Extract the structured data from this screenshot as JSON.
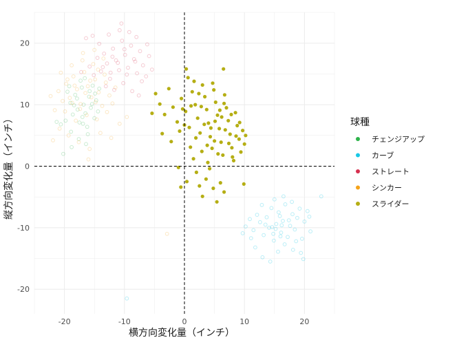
{
  "chart_data": {
    "type": "scatter",
    "xlabel": "横方向変化量（インチ）",
    "ylabel": "縦方向変化量（インチ）",
    "xlim": [
      -25,
      25
    ],
    "ylim": [
      -24,
      25
    ],
    "x_ticks": [
      -20,
      -10,
      0,
      10,
      20
    ],
    "y_ticks": [
      -20,
      -10,
      0,
      10,
      20
    ],
    "x_tick_labels": [
      "-20",
      "-10",
      "0",
      "10",
      "20"
    ],
    "y_tick_labels": [
      "-20",
      "-10",
      "0",
      "10",
      "20"
    ],
    "grid": true,
    "reference_lines": {
      "x": 0,
      "y": 0,
      "style": "dashed"
    },
    "legend_title": "球種",
    "legend_position": "right",
    "series": [
      {
        "name": "チェンジアップ",
        "color": "#2db34a",
        "opacity": 0.25,
        "filled": false,
        "points": [
          [
            -19.5,
            12.1
          ],
          [
            -19.0,
            10.3
          ],
          [
            -18.6,
            8.4
          ],
          [
            -18.2,
            11.6
          ],
          [
            -17.8,
            9.2
          ],
          [
            -17.5,
            7.1
          ],
          [
            -17.1,
            12.8
          ],
          [
            -16.8,
            10.0
          ],
          [
            -16.5,
            8.6
          ],
          [
            -16.2,
            6.4
          ],
          [
            -15.9,
            11.3
          ],
          [
            -15.6,
            9.5
          ],
          [
            -15.3,
            13.1
          ],
          [
            -15.0,
            7.8
          ],
          [
            -14.7,
            10.7
          ],
          [
            -14.4,
            8.9
          ],
          [
            -18.9,
            5.6
          ],
          [
            -17.6,
            4.4
          ],
          [
            -16.4,
            3.6
          ],
          [
            -17.3,
            13.9
          ],
          [
            -15.8,
            12.2
          ],
          [
            -14.9,
            11.8
          ],
          [
            -16.9,
            6.9
          ],
          [
            -18.4,
            9.9
          ],
          [
            -19.8,
            7.4
          ],
          [
            -20.6,
            6.8
          ],
          [
            -21.3,
            7.2
          ],
          [
            -20.2,
            2.0
          ],
          [
            -16.1,
            5.2
          ],
          [
            -15.4,
            10.1
          ],
          [
            -17.9,
            11.0
          ],
          [
            -19.2,
            13.0
          ],
          [
            -16.6,
            14.3
          ],
          [
            -14.2,
            12.6
          ],
          [
            -18.8,
            3.1
          ],
          [
            -17.0,
            8.0
          ]
        ]
      },
      {
        "name": "カーブ",
        "color": "#19c8e6",
        "opacity": 0.3,
        "filled": false,
        "points": [
          [
            10.2,
            -9.8
          ],
          [
            10.9,
            -8.6
          ],
          [
            11.5,
            -10.4
          ],
          [
            12.1,
            -7.9
          ],
          [
            12.6,
            -9.1
          ],
          [
            13.2,
            -11.2
          ],
          [
            13.7,
            -8.3
          ],
          [
            14.1,
            -10.0
          ],
          [
            14.5,
            -6.8
          ],
          [
            14.9,
            -12.1
          ],
          [
            15.3,
            -9.4
          ],
          [
            15.7,
            -7.5
          ],
          [
            16.1,
            -10.8
          ],
          [
            16.4,
            -8.9
          ],
          [
            16.8,
            -6.2
          ],
          [
            17.2,
            -11.5
          ],
          [
            17.6,
            -9.7
          ],
          [
            18.0,
            -7.8
          ],
          [
            18.4,
            -10.3
          ],
          [
            18.8,
            -8.4
          ],
          [
            19.2,
            -6.9
          ],
          [
            19.6,
            -11.8
          ],
          [
            20.0,
            -9.0
          ],
          [
            20.5,
            -7.3
          ],
          [
            21.0,
            -10.6
          ],
          [
            11.8,
            -13.2
          ],
          [
            13.0,
            -14.8
          ],
          [
            14.3,
            -15.5
          ],
          [
            15.6,
            -13.9
          ],
          [
            16.7,
            -12.7
          ],
          [
            18.1,
            -13.6
          ],
          [
            19.4,
            -14.1
          ],
          [
            15.0,
            -5.4
          ],
          [
            16.5,
            -4.9
          ],
          [
            17.9,
            -5.8
          ],
          [
            12.9,
            -6.3
          ],
          [
            11.1,
            -11.7
          ],
          [
            14.6,
            -9.9
          ],
          [
            15.9,
            -8.1
          ],
          [
            16.2,
            -9.6
          ],
          [
            17.4,
            -8.8
          ],
          [
            13.5,
            -9.5
          ],
          [
            14.8,
            -11.0
          ],
          [
            16.0,
            -11.4
          ],
          [
            18.6,
            -12.2
          ],
          [
            20.8,
            -8.2
          ],
          [
            22.8,
            -4.9
          ],
          [
            9.7,
            -10.9
          ],
          [
            19.8,
            -15.1
          ],
          [
            15.2,
            -10.2
          ],
          [
            -9.6,
            -21.5
          ]
        ]
      },
      {
        "name": "ストレート",
        "color": "#d6304f",
        "opacity": 0.25,
        "filled": false,
        "points": [
          [
            -15.8,
            16.2
          ],
          [
            -15.1,
            14.8
          ],
          [
            -14.5,
            17.6
          ],
          [
            -13.9,
            15.4
          ],
          [
            -13.4,
            18.3
          ],
          [
            -12.9,
            16.7
          ],
          [
            -12.4,
            14.2
          ],
          [
            -11.9,
            19.1
          ],
          [
            -11.4,
            17.2
          ],
          [
            -10.9,
            15.6
          ],
          [
            -10.4,
            20.4
          ],
          [
            -9.9,
            18.1
          ],
          [
            -9.4,
            16.0
          ],
          [
            -8.9,
            19.6
          ],
          [
            -8.4,
            17.4
          ],
          [
            -7.9,
            15.1
          ],
          [
            -7.4,
            18.7
          ],
          [
            -6.9,
            16.4
          ],
          [
            -6.4,
            14.6
          ],
          [
            -5.9,
            17.9
          ],
          [
            -13.1,
            13.0
          ],
          [
            -11.7,
            12.4
          ],
          [
            -10.2,
            13.5
          ],
          [
            -8.7,
            12.2
          ],
          [
            -7.1,
            13.8
          ],
          [
            -12.6,
            21.4
          ],
          [
            -10.8,
            22.1
          ],
          [
            -9.2,
            21.8
          ],
          [
            -14.2,
            19.9
          ],
          [
            -16.4,
            20.8
          ],
          [
            -17.2,
            15.3
          ],
          [
            -11.1,
            16.8
          ],
          [
            -9.6,
            14.9
          ],
          [
            -8.2,
            17.0
          ],
          [
            -12.0,
            17.8
          ],
          [
            -13.6,
            16.1
          ],
          [
            -10.0,
            19.0
          ],
          [
            -6.2,
            19.8
          ],
          [
            -5.4,
            15.7
          ],
          [
            -15.3,
            21.2
          ],
          [
            -10.5,
            23.2
          ],
          [
            -8.0,
            21.0
          ],
          [
            -12.3,
            15.2
          ],
          [
            -7.6,
            11.5
          ]
        ]
      },
      {
        "name": "シンカー",
        "color": "#f5a31a",
        "opacity": 0.25,
        "filled": false,
        "points": [
          [
            -21.0,
            12.2
          ],
          [
            -20.3,
            10.6
          ],
          [
            -19.7,
            13.4
          ],
          [
            -19.1,
            11.1
          ],
          [
            -18.5,
            14.6
          ],
          [
            -17.9,
            12.5
          ],
          [
            -17.3,
            10.1
          ],
          [
            -16.7,
            15.3
          ],
          [
            -16.1,
            13.0
          ],
          [
            -15.5,
            11.2
          ],
          [
            -14.9,
            14.1
          ],
          [
            -14.3,
            12.0
          ],
          [
            -13.7,
            9.8
          ],
          [
            -13.1,
            13.6
          ],
          [
            -12.5,
            11.5
          ],
          [
            -18.8,
            16.4
          ],
          [
            -17.0,
            17.2
          ],
          [
            -15.2,
            16.6
          ],
          [
            -19.9,
            8.9
          ],
          [
            -18.1,
            7.4
          ],
          [
            -16.3,
            8.3
          ],
          [
            -14.6,
            7.6
          ],
          [
            -12.9,
            8.8
          ],
          [
            -20.8,
            6.1
          ],
          [
            -19.3,
            5.0
          ],
          [
            -17.6,
            3.9
          ],
          [
            -15.8,
            2.8
          ],
          [
            -14.0,
            5.4
          ],
          [
            -12.2,
            4.6
          ],
          [
            -21.6,
            9.1
          ],
          [
            -22.3,
            11.4
          ],
          [
            -16.9,
            18.4
          ],
          [
            -15.0,
            18.9
          ],
          [
            -13.5,
            17.5
          ],
          [
            -18.3,
            13.1
          ],
          [
            -16.5,
            11.9
          ],
          [
            -14.8,
            10.4
          ],
          [
            -17.4,
            9.3
          ],
          [
            -19.5,
            14.1
          ],
          [
            -15.7,
            13.9
          ],
          [
            -13.3,
            14.9
          ],
          [
            -12.0,
            10.2
          ],
          [
            -11.5,
            12.8
          ],
          [
            -10.8,
            6.9
          ],
          [
            -9.6,
            8.0
          ],
          [
            -20.6,
            15.2
          ],
          [
            -21.9,
            4.2
          ],
          [
            -16.0,
            1.1
          ],
          [
            -14.4,
            15.7
          ],
          [
            -18.7,
            10.3
          ],
          [
            -2.9,
            -11.0
          ]
        ]
      },
      {
        "name": "スライダー",
        "color": "#b5ae14",
        "opacity": 1,
        "filled": true,
        "points": [
          [
            -4.8,
            11.8
          ],
          [
            -4.1,
            10.1
          ],
          [
            -3.3,
            8.4
          ],
          [
            -2.6,
            12.6
          ],
          [
            -1.9,
            9.6
          ],
          [
            -1.2,
            7.2
          ],
          [
            -0.5,
            11.0
          ],
          [
            0.2,
            8.9
          ],
          [
            0.8,
            6.3
          ],
          [
            1.3,
            12.1
          ],
          [
            1.8,
            10.0
          ],
          [
            2.2,
            7.8
          ],
          [
            2.6,
            5.4
          ],
          [
            3.0,
            13.2
          ],
          [
            3.4,
            11.3
          ],
          [
            3.7,
            9.2
          ],
          [
            4.0,
            7.0
          ],
          [
            4.3,
            4.8
          ],
          [
            4.6,
            2.9
          ],
          [
            4.9,
            12.4
          ],
          [
            5.2,
            10.4
          ],
          [
            5.5,
            8.3
          ],
          [
            5.8,
            6.1
          ],
          [
            6.1,
            3.9
          ],
          [
            6.4,
            1.8
          ],
          [
            6.7,
            11.6
          ],
          [
            7.0,
            9.5
          ],
          [
            7.3,
            7.4
          ],
          [
            7.6,
            5.2
          ],
          [
            7.9,
            3.0
          ],
          [
            8.2,
            0.9
          ],
          [
            8.5,
            8.7
          ],
          [
            8.8,
            6.6
          ],
          [
            9.1,
            4.4
          ],
          [
            9.4,
            2.3
          ],
          [
            9.7,
            5.8
          ],
          [
            10.0,
            3.6
          ],
          [
            1.0,
            3.1
          ],
          [
            1.5,
            1.2
          ],
          [
            2.0,
            -1.0
          ],
          [
            2.5,
            -3.2
          ],
          [
            3.0,
            -4.9
          ],
          [
            3.6,
            -2.1
          ],
          [
            4.2,
            -0.4
          ],
          [
            4.8,
            -3.6
          ],
          [
            5.4,
            -5.8
          ],
          [
            6.0,
            -2.7
          ],
          [
            6.6,
            -4.2
          ],
          [
            0.4,
            -2.5
          ],
          [
            -0.6,
            -3.4
          ],
          [
            -1.0,
            -0.2
          ],
          [
            1.9,
            4.6
          ],
          [
            2.9,
            2.4
          ],
          [
            3.9,
            0.6
          ],
          [
            4.4,
            6.2
          ],
          [
            5.0,
            4.1
          ],
          [
            5.6,
            2.0
          ],
          [
            6.2,
            8.0
          ],
          [
            6.8,
            5.9
          ],
          [
            7.4,
            3.7
          ],
          [
            8.0,
            1.5
          ],
          [
            0.6,
            14.4
          ],
          [
            0.3,
            15.8
          ],
          [
            1.6,
            13.8
          ],
          [
            6.5,
            15.8
          ],
          [
            -5.4,
            8.6
          ],
          [
            -3.7,
            5.3
          ],
          [
            -2.2,
            4.0
          ],
          [
            -0.8,
            5.7
          ],
          [
            2.8,
            9.7
          ],
          [
            3.3,
            6.8
          ],
          [
            3.8,
            3.4
          ],
          [
            5.1,
            7.3
          ],
          [
            5.9,
            9.1
          ],
          [
            6.6,
            10.2
          ],
          [
            7.8,
            8.4
          ],
          [
            8.6,
            4.9
          ],
          [
            9.2,
            7.1
          ],
          [
            2.4,
            11.8
          ],
          [
            4.7,
            13.5
          ],
          [
            1.1,
            9.8
          ],
          [
            0.0,
            6.7
          ],
          [
            -0.3,
            9.3
          ],
          [
            9.9,
            -2.9
          ],
          [
            10.2,
            5.0
          ]
        ]
      }
    ]
  }
}
